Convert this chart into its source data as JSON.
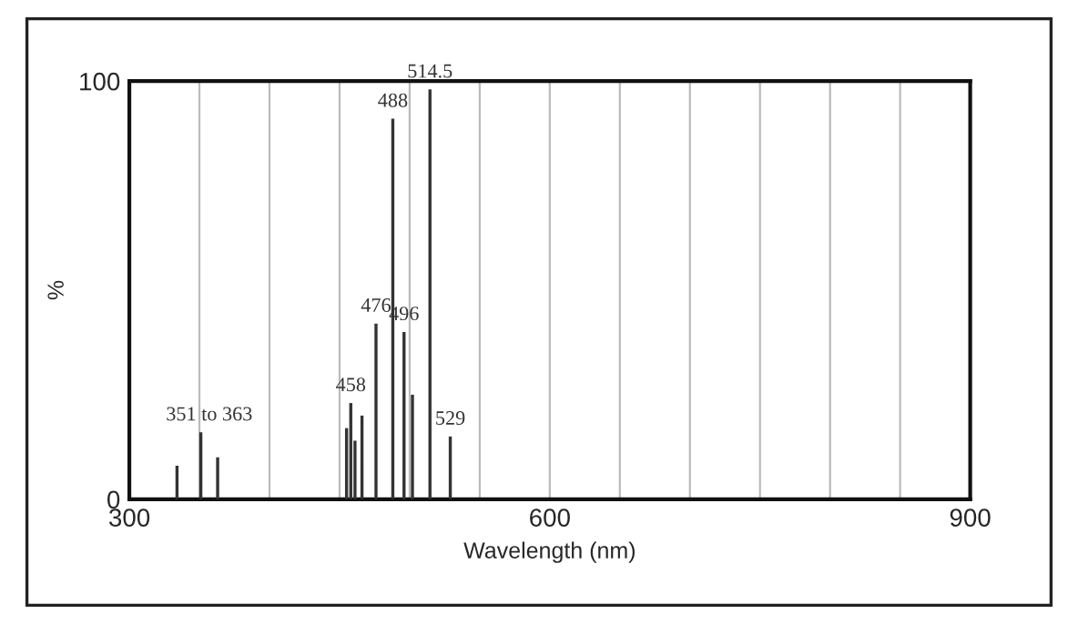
{
  "chart_data": {
    "type": "bar",
    "x": [
      334,
      351,
      363,
      455,
      458,
      461,
      466,
      476,
      488,
      496,
      502,
      514.5,
      529
    ],
    "values": [
      8,
      16,
      10,
      17,
      23,
      14,
      20,
      42,
      91,
      40,
      25,
      98,
      15
    ],
    "color": "#333333",
    "xlabel": "Wavelength (nm)",
    "ylabel": "%",
    "xlim": [
      300,
      900
    ],
    "ylim": [
      0,
      100
    ],
    "xticks": [
      300,
      {
        "value": 350,
        "label": null
      },
      {
        "value": 400,
        "label": null
      },
      {
        "value": 450,
        "label": null
      },
      {
        "value": 500,
        "label": null
      },
      {
        "value": 550,
        "label": null
      },
      600,
      {
        "value": 650,
        "label": null
      },
      {
        "value": 700,
        "label": null
      },
      {
        "value": 750,
        "label": null
      },
      {
        "value": 800,
        "label": null
      },
      {
        "value": 850,
        "label": null
      },
      900
    ],
    "yticks": [
      0,
      100
    ],
    "grid": "x",
    "annotations": [
      {
        "text": "351 to 363",
        "x": 357,
        "y": 16
      },
      {
        "text": "458",
        "x": 458,
        "y": 23
      },
      {
        "text": "476",
        "x": 476,
        "y": 42
      },
      {
        "text": "488",
        "x": 488,
        "y": 91
      },
      {
        "text": "496",
        "x": 496,
        "y": 40
      },
      {
        "text": "514.5",
        "x": 514.5,
        "y": 98
      },
      {
        "text": "529",
        "x": 529,
        "y": 15
      }
    ]
  }
}
